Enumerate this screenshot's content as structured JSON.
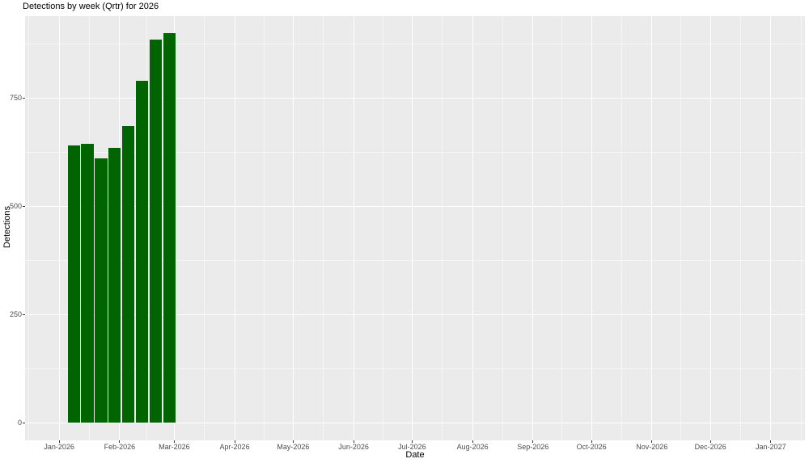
{
  "title": "Detections by week (Qrtr) for 2026",
  "chart_data": {
    "type": "bar",
    "title": "Detections by week (Qrtr) for 2026",
    "xlabel": "Date",
    "ylabel": "Detections",
    "categories": [
      "2026-01-05",
      "2026-01-12",
      "2026-01-19",
      "2026-01-26",
      "2026-02-02",
      "2026-02-09",
      "2026-02-16",
      "2026-02-23"
    ],
    "values": [
      640,
      645,
      610,
      635,
      685,
      790,
      885,
      900
    ],
    "week_start_days": [
      4,
      11,
      18,
      25,
      32,
      39,
      46,
      53
    ],
    "bar_width_days": 7,
    "x_tick_labels": [
      "Jan-2026",
      "Feb-2026",
      "Mar-2026",
      "Apr-2026",
      "May-2026",
      "Jun-2026",
      "Jul-2026",
      "Aug-2026",
      "Sep-2026",
      "Oct-2026",
      "Nov-2026",
      "Dec-2026",
      "Jan-2027"
    ],
    "x_tick_days": [
      0,
      31,
      59,
      90,
      120,
      151,
      181,
      212,
      243,
      273,
      304,
      334,
      365
    ],
    "y_ticks": [
      0,
      250,
      500,
      750
    ],
    "xlim_days": [
      -17.5,
      382.5
    ],
    "ylim": [
      -40.5,
      939
    ],
    "grid": "major+minor horizontal and vertical, white on grey panel",
    "legend": "none",
    "colors": {
      "bar": "#006400",
      "panel_background": "#EBEBEB",
      "gridline": "#FFFFFF",
      "tick_label": "#4D4D4D",
      "tick_mark": "#333333",
      "text": "#000000",
      "background": "#FFFFFF"
    }
  }
}
